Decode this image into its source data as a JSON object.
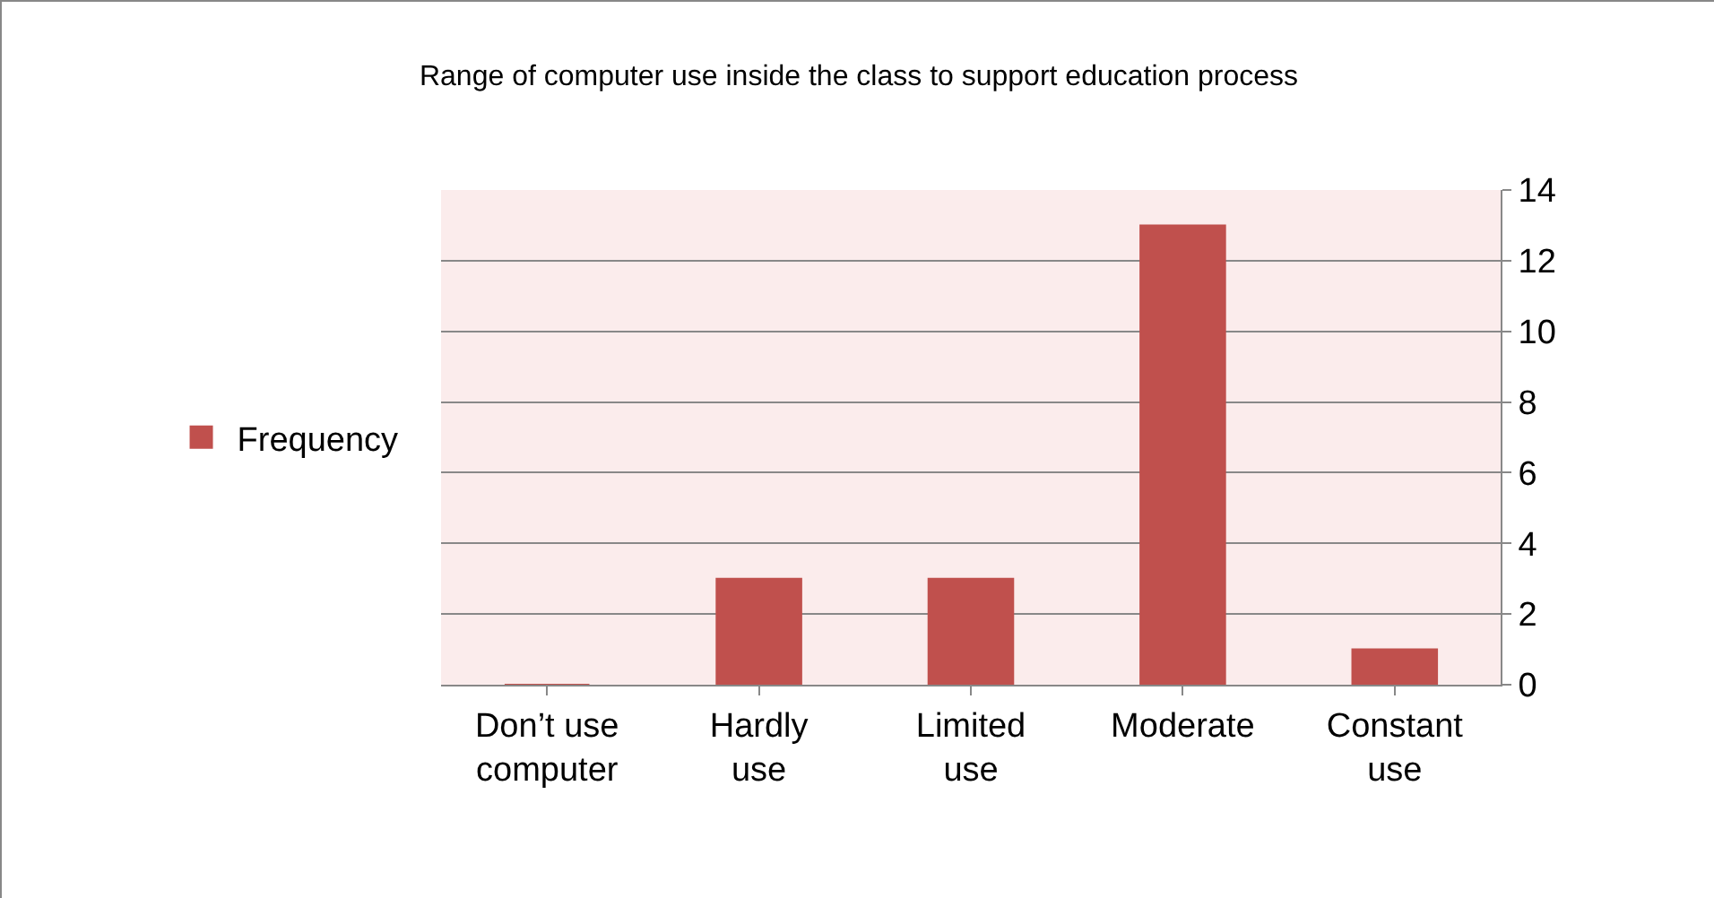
{
  "chart_data": {
    "type": "bar",
    "title": "Range of computer use inside the class to support education process",
    "categories": [
      "Don’t use computer",
      "Hardly use",
      "Limited use",
      "Moderate",
      "Constant use"
    ],
    "series": [
      {
        "name": "Frequency",
        "color": "#c0504d",
        "values": [
          0,
          3,
          3,
          13,
          1
        ]
      }
    ],
    "ylim": [
      0,
      14
    ],
    "yticks": [
      0,
      2,
      4,
      6,
      8,
      10,
      12,
      14
    ],
    "grid": "y",
    "legend": "left"
  }
}
